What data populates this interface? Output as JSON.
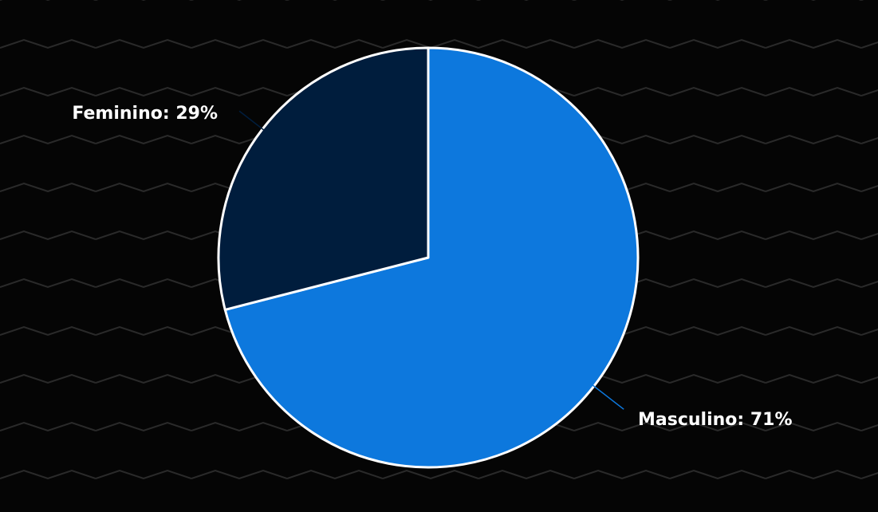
{
  "chart_data": {
    "type": "pie",
    "title": "",
    "slices": [
      {
        "label": "Masculino",
        "value": 71,
        "display": "Masculino: 71%",
        "color": "#0d78dd"
      },
      {
        "label": "Feminino",
        "value": 29,
        "display": "Feminino: 29%",
        "color": "#001d3d"
      }
    ],
    "legend": "none",
    "slice_border_color": "#ffffff"
  },
  "background": {
    "color": "#050505",
    "pattern": "zigzag",
    "pattern_color": "#2a2a2a"
  }
}
